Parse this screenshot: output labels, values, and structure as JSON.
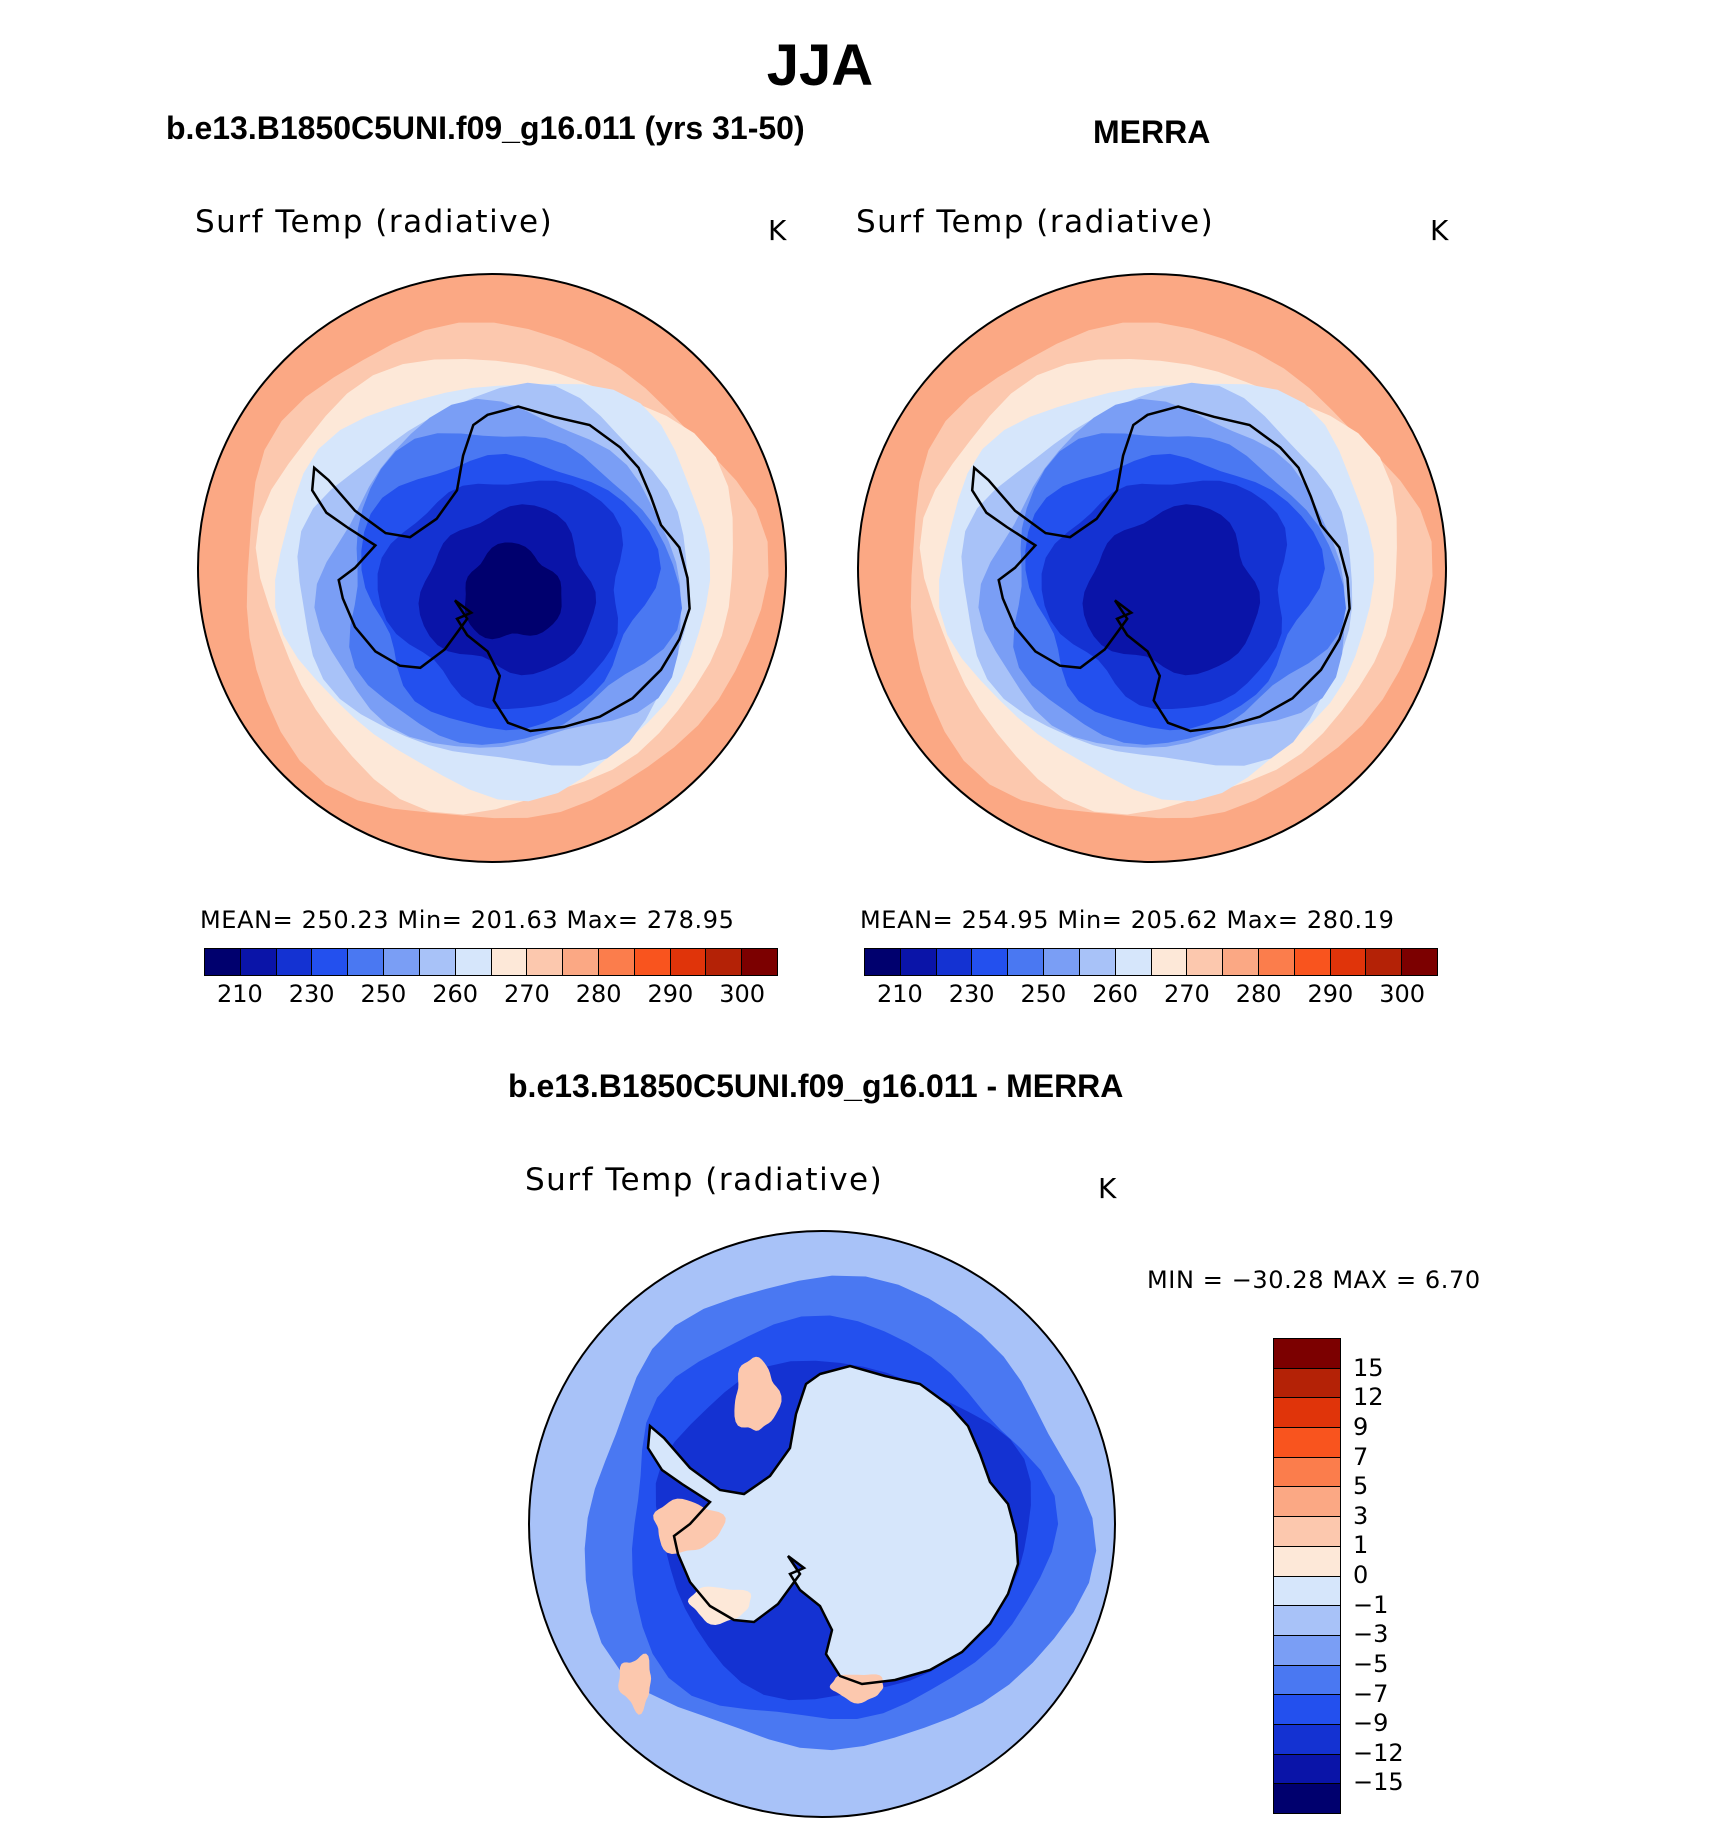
{
  "figure": {
    "title": "JJA",
    "diff_title": "b.e13.B1850C5UNI.f09_g16.011 - MERRA"
  },
  "panels": [
    {
      "title": "b.e13.B1850C5UNI.f09_g16.011 (yrs 31-50)",
      "variable": "Surf Temp (radiative)",
      "unit": "K",
      "stats": "MEAN= 250.23   Min= 201.63   Max= 278.95"
    },
    {
      "title": "MERRA",
      "variable": "Surf Temp (radiative)",
      "unit": "K",
      "stats": "MEAN= 254.95   Min= 205.62   Max= 280.19"
    }
  ],
  "diff_panel": {
    "variable": "Surf Temp (radiative)",
    "unit": "K",
    "stats": "MIN = −30.28 MAX =    6.70"
  },
  "abs_colorbar": {
    "colors": [
      "#00006e",
      "#0a14a8",
      "#1432d2",
      "#2350ee",
      "#4a78f2",
      "#7a9ef5",
      "#a8c2f8",
      "#d6e6fb",
      "#fde8d8",
      "#fcc8ae",
      "#fba884",
      "#fb7d4c",
      "#f9541e",
      "#e0340a",
      "#b42206",
      "#7c0000"
    ],
    "ticks": [
      "210",
      "230",
      "250",
      "260",
      "270",
      "280",
      "290",
      "300"
    ]
  },
  "diff_colorbar": {
    "colors": [
      "#7c0000",
      "#b42206",
      "#e0340a",
      "#f9541e",
      "#fb7d4c",
      "#fba884",
      "#fcc8ae",
      "#fde8d8",
      "#d6e6fb",
      "#a8c2f8",
      "#7a9ef5",
      "#4a78f2",
      "#2350ee",
      "#1432d2",
      "#0a14a8",
      "#00006e"
    ],
    "ticks": [
      "15",
      "12",
      "9",
      "7",
      "5",
      "3",
      "1",
      "0",
      "−1",
      "−3",
      "−5",
      "−7",
      "−9",
      "−12",
      "−15"
    ]
  },
  "map_colors": {
    "abs_left": [
      "#fba884",
      "#fcc8ae",
      "#fde8d8",
      "#d6e6fb",
      "#a8c2f8",
      "#7a9ef5",
      "#4a78f2",
      "#2350ee",
      "#1432d2",
      "#0a14a8",
      "#00006e"
    ],
    "abs_right": [
      "#fba884",
      "#fcc8ae",
      "#fde8d8",
      "#d6e6fb",
      "#a8c2f8",
      "#7a9ef5",
      "#4a78f2",
      "#2350ee",
      "#1432d2",
      "#0a14a8"
    ],
    "diff": [
      "#a8c2f8",
      "#4a78f2",
      "#2350ee",
      "#1432d2"
    ],
    "diff_land": "#d6e6fb",
    "coastline": "#000000"
  }
}
